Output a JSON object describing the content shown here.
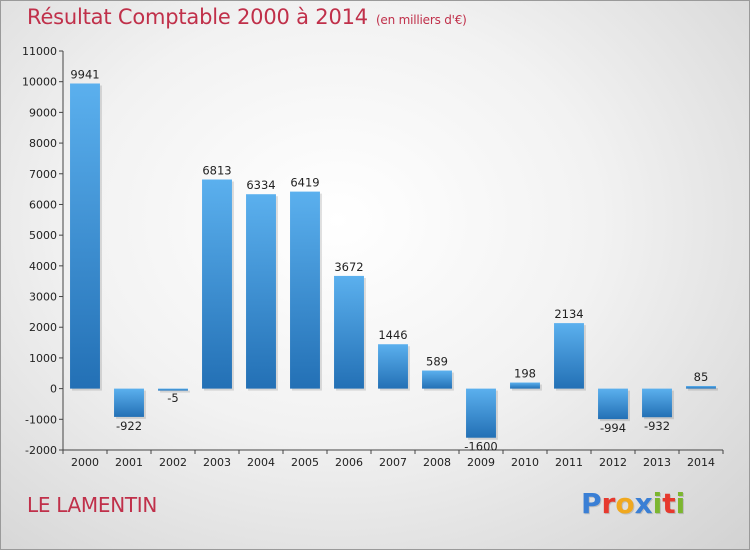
{
  "header": {
    "title": "Résultat Comptable 2000 à 2014",
    "subtitle": "(en milliers d'€)"
  },
  "footer": {
    "city": "LE LAMENTIN",
    "logo_letters": [
      "P",
      "r",
      "o",
      "x",
      "i",
      "t",
      "i"
    ],
    "logo_colors": [
      "#3a7fd5",
      "#e6392e",
      "#f0a81e",
      "#3a7fd5",
      "#7cb62f",
      "#e6392e",
      "#7cb62f"
    ]
  },
  "chart_data": {
    "type": "bar",
    "title": "Résultat Comptable 2000 à 2014",
    "subtitle": "(en milliers d'€)",
    "categories": [
      "2000",
      "2001",
      "2002",
      "2003",
      "2004",
      "2005",
      "2006",
      "2007",
      "2008",
      "2009",
      "2010",
      "2011",
      "2012",
      "2013",
      "2014"
    ],
    "values": [
      9941,
      -922,
      -5,
      6813,
      6334,
      6419,
      3672,
      1446,
      589,
      -1600,
      198,
      2134,
      -994,
      -932,
      85
    ],
    "value_labels": [
      "9941",
      "-922",
      "-5",
      "6813",
      "6334",
      "6419",
      "3672",
      "1446",
      "589",
      "-1600",
      "198",
      "2134",
      "-994",
      "-932",
      "85"
    ],
    "ylim": [
      -2000,
      11000
    ],
    "yticks": [
      -2000,
      -1000,
      0,
      1000,
      2000,
      3000,
      4000,
      5000,
      6000,
      7000,
      8000,
      9000,
      10000,
      11000
    ],
    "ytick_labels": [
      "-2000",
      "-1000",
      "0",
      "1000",
      "2000",
      "3000",
      "4000",
      "5000",
      "6000",
      "7000",
      "8000",
      "9000",
      "10000",
      "11000"
    ],
    "grid": false,
    "bar_color": "#3a8fd8"
  }
}
